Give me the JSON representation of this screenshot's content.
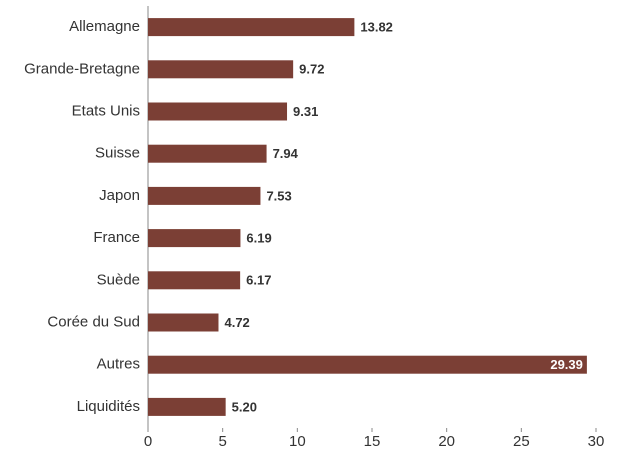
{
  "chart_data": {
    "type": "bar",
    "orientation": "horizontal",
    "categories": [
      "Allemagne",
      "Grande-Bretagne",
      "Etats Unis",
      "Suisse",
      "Japon",
      "France",
      "Suède",
      "Corée du Sud",
      "Autres",
      "Liquidités"
    ],
    "values": [
      13.82,
      9.72,
      9.31,
      7.94,
      7.53,
      6.19,
      6.17,
      4.72,
      29.39,
      5.2
    ],
    "value_labels": [
      "13.82",
      "9.72",
      "9.31",
      "7.94",
      "7.53",
      "6.19",
      "6.17",
      "4.72",
      "29.39",
      "5.20"
    ],
    "color": "#7b3f35",
    "xlim": [
      0,
      30
    ],
    "xticks": [
      0,
      5,
      10,
      15,
      20,
      25,
      30
    ]
  }
}
